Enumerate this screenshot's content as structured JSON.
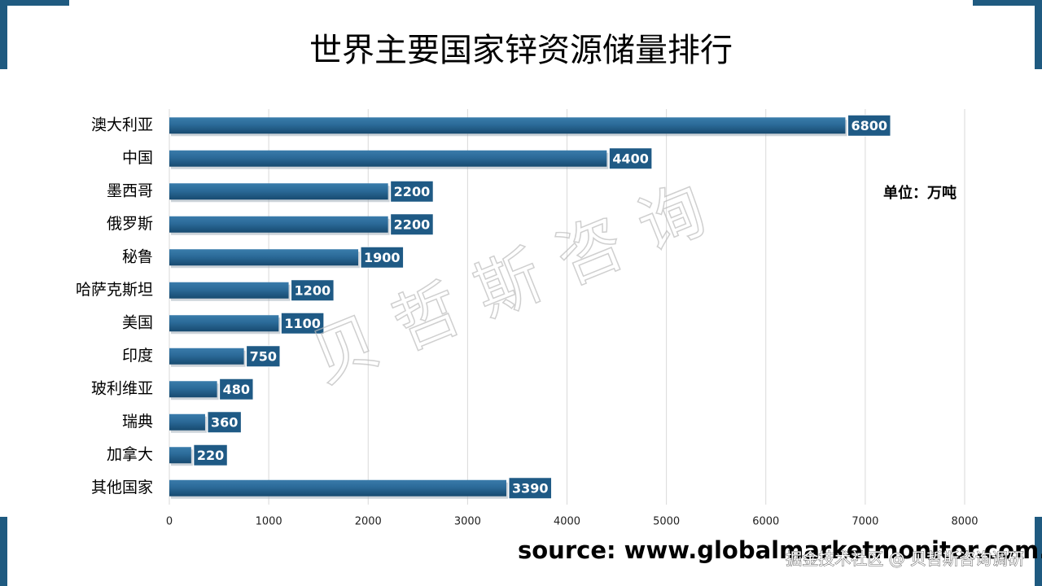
{
  "chart_data": {
    "type": "hbar",
    "title": "世界主要国家锌资源储量排行",
    "unit_label": "单位：万吨",
    "categories": [
      "澳大利亚",
      "中国",
      "墨西哥",
      "俄罗斯",
      "秘鲁",
      "哈萨克斯坦",
      "美国",
      "印度",
      "玻利维亚",
      "瑞典",
      "加拿大",
      "其他国家"
    ],
    "values": [
      6800,
      4400,
      2200,
      2200,
      1900,
      1200,
      1100,
      750,
      480,
      360,
      220,
      3390
    ],
    "color": "#1f5a85",
    "xlim": [
      0,
      8000
    ],
    "xticks": [
      0,
      1000,
      2000,
      3000,
      4000,
      5000,
      6000,
      7000,
      8000
    ],
    "grid": true,
    "source": "source: www.globalmarketmonitor.com.cn",
    "watermark": "贝哲斯咨询",
    "footer": "掘金技术社区 @ 贝哲斯咨询调研"
  }
}
